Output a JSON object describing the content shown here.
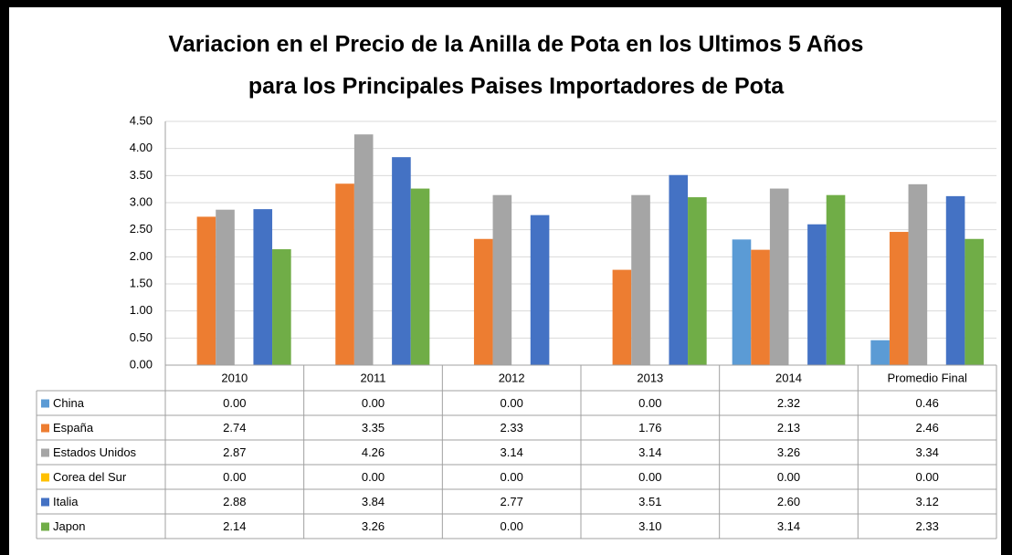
{
  "chart_data": {
    "type": "bar",
    "title": [
      "Variacion en el Precio de la Anilla de Pota en los Ultimos 5 Años",
      "para los Principales Paises Importadores de Pota"
    ],
    "categories": [
      "2010",
      "2011",
      "2012",
      "2013",
      "2014",
      "Promedio Final"
    ],
    "series": [
      {
        "name": "China",
        "color": "#5b9bd5",
        "values": [
          0,
          0,
          0,
          0,
          2.32,
          0.46
        ],
        "value_labels": [
          "0.00",
          "0.00",
          "0.00",
          "0.00",
          "2.32",
          "0.46"
        ]
      },
      {
        "name": "España",
        "color": "#ed7d31",
        "values": [
          2.74,
          3.35,
          2.33,
          1.76,
          2.13,
          2.46
        ],
        "value_labels": [
          "2.74",
          "3.35",
          "2.33",
          "1.76",
          "2.13",
          "2.46"
        ]
      },
      {
        "name": "Estados Unidos",
        "color": "#a5a5a5",
        "values": [
          2.87,
          4.26,
          3.14,
          3.14,
          3.26,
          3.34
        ],
        "value_labels": [
          "2.87",
          "4.26",
          "3.14",
          "3.14",
          "3.26",
          "3.34"
        ]
      },
      {
        "name": "Corea del Sur",
        "color": "#ffc000",
        "values": [
          0,
          0,
          0,
          0,
          0,
          0
        ],
        "value_labels": [
          "0.00",
          "0.00",
          "0.00",
          "0.00",
          "0.00",
          "0.00"
        ]
      },
      {
        "name": "Italia",
        "color": "#4472c4",
        "values": [
          2.88,
          3.84,
          2.77,
          3.51,
          2.6,
          3.12
        ],
        "value_labels": [
          "2.88",
          "3.84",
          "2.77",
          "3.51",
          "2.60",
          "3.12"
        ]
      },
      {
        "name": "Japon",
        "color": "#70ad47",
        "values": [
          2.14,
          3.26,
          0,
          3.1,
          3.14,
          2.33
        ],
        "value_labels": [
          "2.14",
          "3.26",
          "0.00",
          "3.10",
          "3.14",
          "2.33"
        ]
      }
    ],
    "ylim": [
      0,
      4.5
    ],
    "yticks": [
      {
        "value": 0,
        "label": "0.00"
      },
      {
        "value": 0.5,
        "label": "0.50"
      },
      {
        "value": 1,
        "label": "1.00"
      },
      {
        "value": 1.5,
        "label": "1.50"
      },
      {
        "value": 2,
        "label": "2.00"
      },
      {
        "value": 2.5,
        "label": "2.50"
      },
      {
        "value": 3,
        "label": "3.00"
      },
      {
        "value": 3.5,
        "label": "3.50"
      },
      {
        "value": 4,
        "label": "4.00"
      },
      {
        "value": 4.5,
        "label": "4.50"
      }
    ],
    "grid": true
  }
}
